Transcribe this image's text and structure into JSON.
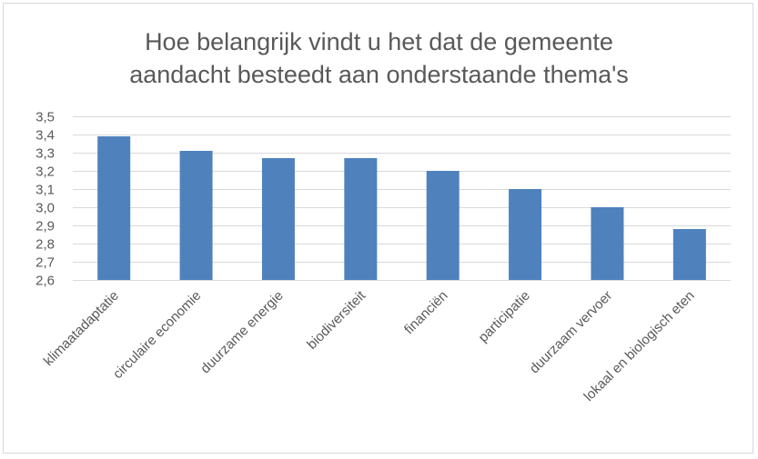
{
  "chart_data": {
    "type": "bar",
    "title_lines": [
      "Hoe belangrijk vindt u het dat de gemeente",
      "aandacht besteedt aan onderstaande thema's"
    ],
    "categories": [
      "klimaatadaptatie",
      "circulaire economie",
      "duurzame energie",
      "biodiversiteit",
      "financiën",
      "participatie",
      "duurzaam vervoer",
      "lokaal en biologisch eten"
    ],
    "values": [
      3.39,
      3.31,
      3.27,
      3.27,
      3.2,
      3.1,
      3.0,
      2.88
    ],
    "ylim": [
      2.6,
      3.5
    ],
    "yticks": [
      "2,6",
      "2,7",
      "2,8",
      "2,9",
      "3,0",
      "3,1",
      "3,2",
      "3,3",
      "3,4",
      "3,5"
    ],
    "grid": true,
    "legend": "none",
    "bar_color": "#4f81bd",
    "grid_color": "#d9d9d9",
    "text_color": "#595959"
  }
}
